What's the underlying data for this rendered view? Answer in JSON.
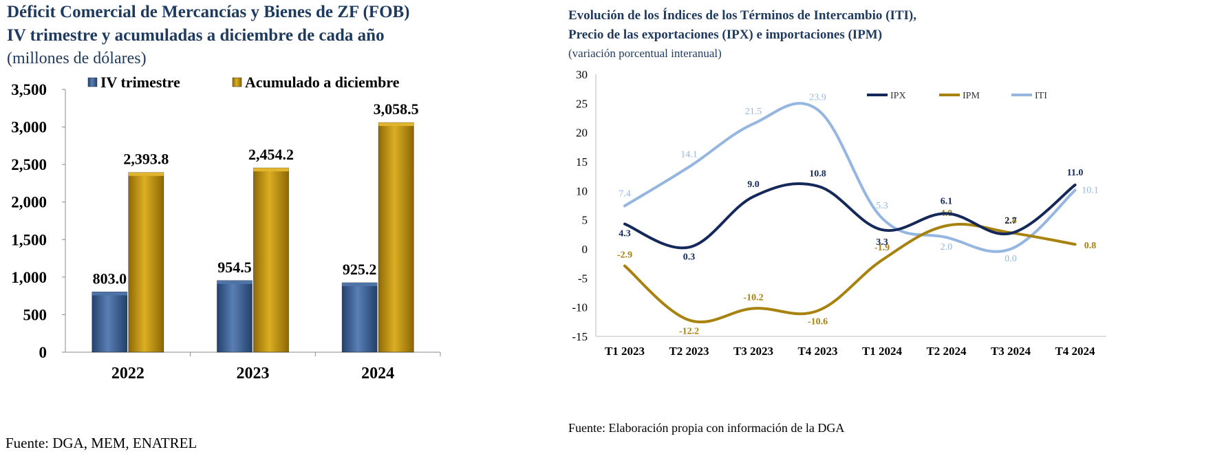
{
  "left_chart": {
    "title_line1": "Déficit Comercial de Mercancías y Bienes de ZF (FOB)",
    "title_line2": "IV trimestre y acumuladas a diciembre de cada año",
    "subtitle": "(millones de dólares)",
    "source": "Fuente: DGA, MEM, ENATREL"
  },
  "right_chart": {
    "title_line1": "Evolución de los Índices de los Términos de Intercambio (ITI),",
    "title_line2": "Precio de las exportaciones (IPX) e importaciones (IPM)",
    "subtitle": "(variación porcentual interanual)",
    "source": "Fuente: Elaboración propia con información de la DGA"
  },
  "colors": {
    "title": "#1f3a5f",
    "bar_blue": "#3b5f93",
    "bar_gold": "#c9980a",
    "ipx": "#14285a",
    "ipm": "#a8820e",
    "iti": "#94b6e0"
  },
  "chart_data": [
    {
      "type": "bar",
      "categories": [
        "2022",
        "2023",
        "2024"
      ],
      "series": [
        {
          "name": "IV trimestre",
          "values": [
            803.0,
            954.5,
            925.2
          ],
          "labels": [
            "803.0",
            "954.5",
            "925.2"
          ]
        },
        {
          "name": "Acumulado a diciembre",
          "values": [
            2393.8,
            2454.2,
            3058.5
          ],
          "labels": [
            "2,393.8",
            "2,454.2",
            "3,058.5"
          ]
        }
      ],
      "yticks": [
        "0",
        "500",
        "1,000",
        "1,500",
        "2,000",
        "2,500",
        "3,000",
        "3,500"
      ],
      "ylim": [
        0,
        3500
      ],
      "legend_position": "top"
    },
    {
      "type": "line",
      "categories": [
        "T1 2023",
        "T2 2023",
        "T3 2023",
        "T4 2023",
        "T1 2024",
        "T2 2024",
        "T3 2024",
        "T4 2024"
      ],
      "series": [
        {
          "name": "IPX",
          "values": [
            4.3,
            0.3,
            9.0,
            10.8,
            3.3,
            6.1,
            2.7,
            11.0
          ],
          "labels": [
            "4.3",
            "0.3",
            "9.0",
            "10.8",
            "3.3",
            "6.1",
            "2.7",
            "11.0"
          ]
        },
        {
          "name": "IPM",
          "values": [
            -2.9,
            -12.2,
            -10.2,
            -10.6,
            -1.9,
            4.0,
            2.8,
            0.8
          ],
          "labels": [
            "-2.9",
            "-12.2",
            "-10.2",
            "-10.6",
            "-1.9",
            "4.0",
            "2.8",
            "0.8"
          ]
        },
        {
          "name": "ITI",
          "values": [
            7.4,
            14.1,
            21.5,
            23.9,
            5.3,
            2.0,
            0.0,
            10.1
          ],
          "labels": [
            "7.4",
            "14.1",
            "21.5",
            "23.9",
            "5.3",
            "2.0",
            "0.0",
            "10.1"
          ]
        }
      ],
      "yticks": [
        "-15",
        "-10",
        "-5",
        "0",
        "5",
        "10",
        "15",
        "20",
        "25",
        "30"
      ],
      "ylim": [
        -15,
        30
      ],
      "smooth": true,
      "legend_position": "top-right"
    }
  ]
}
